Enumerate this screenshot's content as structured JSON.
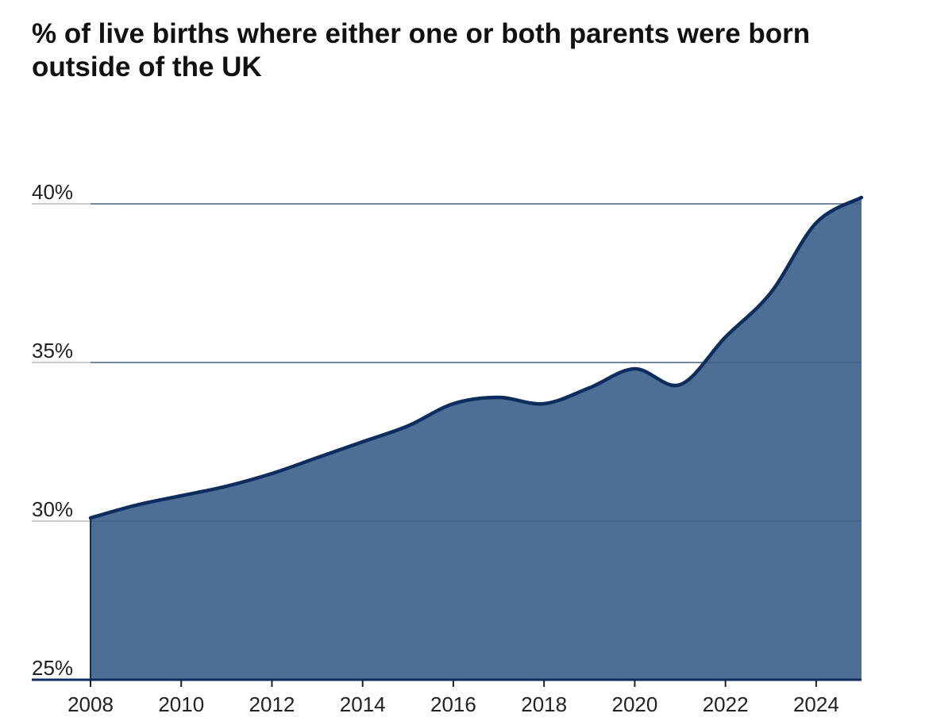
{
  "chart_data": {
    "type": "area",
    "title": "% of live births where either one or both parents were born outside of the UK",
    "xlabel": "",
    "ylabel": "",
    "x": [
      2008,
      2009,
      2010,
      2011,
      2012,
      2013,
      2014,
      2015,
      2016,
      2017,
      2018,
      2019,
      2020,
      2021,
      2022,
      2023,
      2024,
      2025
    ],
    "series": [
      {
        "values": [
          30.1,
          30.5,
          30.8,
          31.1,
          31.5,
          32.0,
          32.5,
          33.0,
          33.7,
          33.9,
          33.7,
          34.2,
          34.8,
          34.3,
          35.8,
          37.2,
          39.4,
          40.2
        ]
      }
    ],
    "xlim": [
      2008,
      2025
    ],
    "ylim": [
      25,
      40
    ],
    "x_ticks": [
      2008,
      2010,
      2012,
      2014,
      2016,
      2018,
      2020,
      2022,
      2024
    ],
    "x_tick_labels": [
      "2008",
      "2010",
      "2012",
      "2014",
      "2016",
      "2018",
      "2020",
      "2022",
      "2024"
    ],
    "y_ticks": [
      25,
      30,
      35,
      40
    ],
    "y_tick_labels": [
      "25%",
      "30%",
      "35%",
      "40%"
    ],
    "grid": true,
    "legend": "none",
    "colors": {
      "fill": "#4e6f95",
      "line": "#0d2d5e",
      "grid": "#cccccc",
      "axis": "#0d2d5e"
    }
  }
}
